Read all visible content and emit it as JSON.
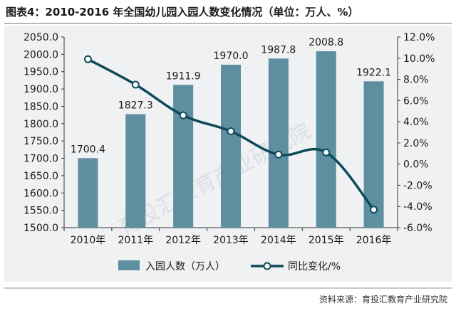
{
  "header": {
    "title": "图表4：2010-2016 年全国幼儿园入园人数变化情况（单位：万人、%）"
  },
  "footer": {
    "source": "资料来源：育投汇教育产业研究院"
  },
  "watermark": "育投汇教育产业研究院",
  "chart_data": {
    "type": "bar",
    "categories": [
      "2010年",
      "2011年",
      "2012年",
      "2013年",
      "2014年",
      "2015年",
      "2016年"
    ],
    "series": [
      {
        "name": "入园人数（万人）",
        "type": "bar",
        "axis": "left",
        "values": [
          1700.4,
          1827.3,
          1911.9,
          1970.0,
          1987.8,
          2008.8,
          1922.1
        ],
        "value_labels": [
          "1700.4",
          "1827.3",
          "1911.9",
          "1970.0",
          "1987.8",
          "2008.8",
          "1922.1"
        ],
        "color": "#5e8fa0"
      },
      {
        "name": "同比变化/%",
        "type": "line",
        "axis": "right",
        "values": [
          9.9,
          7.5,
          4.6,
          3.1,
          0.9,
          1.1,
          -4.3
        ],
        "color": "#0e4a5a"
      }
    ],
    "y_left": {
      "lim": [
        1500,
        2050
      ],
      "ticks": [
        "1500.0",
        "1550.0",
        "1600.0",
        "1650.0",
        "1700.0",
        "1750.0",
        "1800.0",
        "1850.0",
        "1900.0",
        "1950.0",
        "2000.0",
        "2050.0"
      ]
    },
    "y_right": {
      "lim": [
        -6,
        12
      ],
      "ticks": [
        "-6.0%",
        "-4.0%",
        "-2.0%",
        "0.0%",
        "2.0%",
        "4.0%",
        "6.0%",
        "8.0%",
        "10.0%",
        "12.0%"
      ]
    },
    "grid": false,
    "legend": "bottom"
  }
}
